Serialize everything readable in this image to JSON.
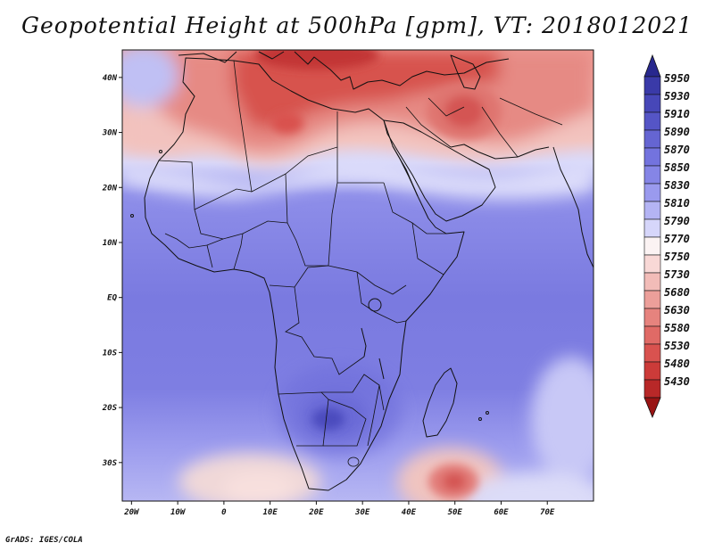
{
  "title": "Geopotential Height at 500hPa [gpm], VT: 2018012021",
  "credit": "GrADS: IGES/COLA",
  "map": {
    "variable": "Geopotential Height 500hPa",
    "units": "gpm",
    "valid_time": "2018012021",
    "lon_range": [
      -22,
      80
    ],
    "lat_range": [
      -37,
      45
    ],
    "lat_ticks": [
      {
        "value": 40,
        "label": "40N"
      },
      {
        "value": 30,
        "label": "30N"
      },
      {
        "value": 20,
        "label": "20N"
      },
      {
        "value": 10,
        "label": "10N"
      },
      {
        "value": 0,
        "label": "EQ"
      },
      {
        "value": -10,
        "label": "10S"
      },
      {
        "value": -20,
        "label": "20S"
      },
      {
        "value": -30,
        "label": "30S"
      }
    ],
    "lon_ticks": [
      {
        "value": -20,
        "label": "20W"
      },
      {
        "value": -10,
        "label": "10W"
      },
      {
        "value": 0,
        "label": "0"
      },
      {
        "value": 10,
        "label": "10E"
      },
      {
        "value": 20,
        "label": "20E"
      },
      {
        "value": 30,
        "label": "30E"
      },
      {
        "value": 40,
        "label": "40E"
      },
      {
        "value": 50,
        "label": "50E"
      },
      {
        "value": 60,
        "label": "60E"
      },
      {
        "value": 70,
        "label": "70E"
      }
    ]
  },
  "legend": [
    {
      "value": "5950",
      "color": "#3a3aa8"
    },
    {
      "value": "5930",
      "color": "#4747b8"
    },
    {
      "value": "5910",
      "color": "#5555c6"
    },
    {
      "value": "5890",
      "color": "#6565d2"
    },
    {
      "value": "5870",
      "color": "#7373de"
    },
    {
      "value": "5850",
      "color": "#8585e6"
    },
    {
      "value": "5830",
      "color": "#9a9aee"
    },
    {
      "value": "5810",
      "color": "#b4b4f4"
    },
    {
      "value": "5790",
      "color": "#d6d6fa"
    },
    {
      "value": "5770",
      "color": "#fbf3f3"
    },
    {
      "value": "5750",
      "color": "#f8d8d6"
    },
    {
      "value": "5730",
      "color": "#f2bcb8"
    },
    {
      "value": "5680",
      "color": "#ec9f9a"
    },
    {
      "value": "5630",
      "color": "#e6837e"
    },
    {
      "value": "5580",
      "color": "#e06a66"
    },
    {
      "value": "5530",
      "color": "#d9524f"
    },
    {
      "value": "5480",
      "color": "#cc3b39"
    },
    {
      "value": "5430",
      "color": "#b82828"
    }
  ],
  "legend_top_color": "#28288e",
  "legend_bottom_color": "#991414",
  "field_features": [
    {
      "name": "high-southern-africa",
      "lon": 23,
      "lat": -22,
      "category": "5910"
    },
    {
      "name": "low-central-mediterranean",
      "lon": 22,
      "lat": 44,
      "category": "5530"
    },
    {
      "name": "low-iran",
      "lon": 53,
      "lat": 33,
      "category": "5630"
    },
    {
      "name": "low-south-of-madagascar",
      "lon": 50,
      "lat": -35,
      "category": "5680"
    },
    {
      "name": "ridge-south-atlantic",
      "lon": 10,
      "lat": -33,
      "category": "5750"
    }
  ]
}
